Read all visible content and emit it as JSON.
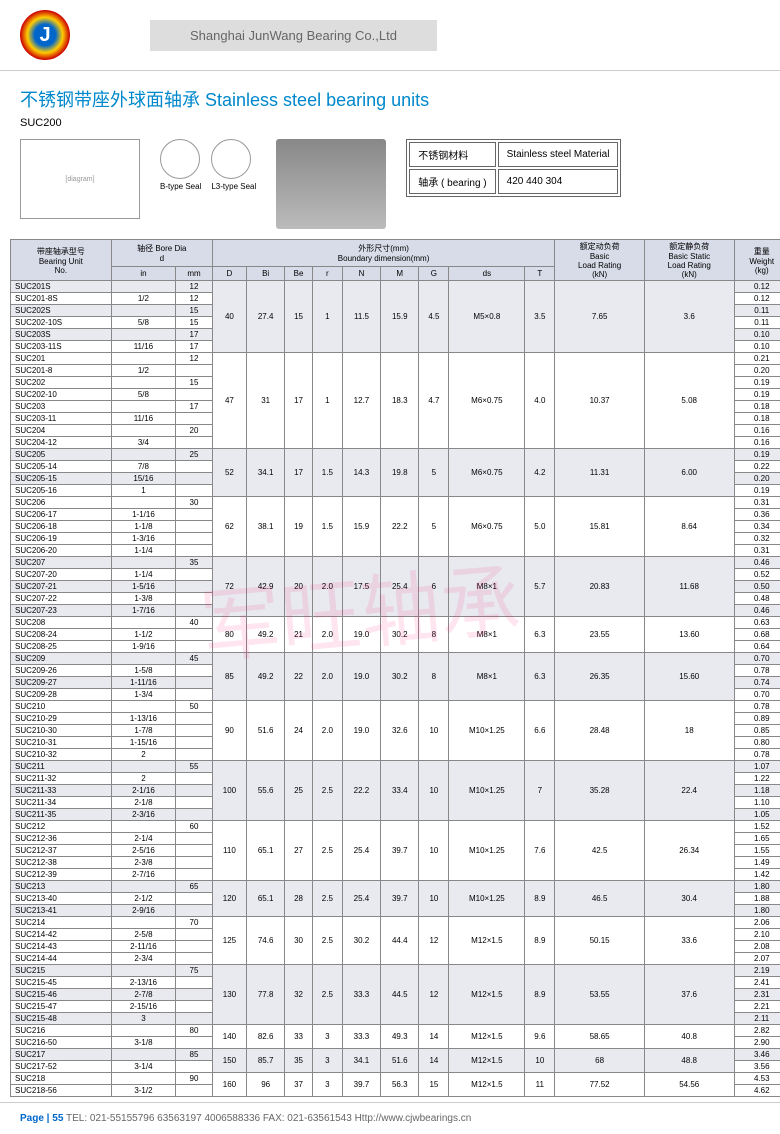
{
  "company": "Shanghai JunWang Bearing Co.,Ltd",
  "title_cn": "不锈钢带座外球面轴承",
  "title_en": "Stainless steel bearing units",
  "model": "SUC200",
  "seal1": "B-type Seal",
  "seal2": "L3-type Seal",
  "mat_label": "不锈钢材料",
  "mat_en": "Stainless steel Material",
  "bearing_label": "轴承 ( bearing )",
  "bearing_val": "420 440 304",
  "h_no": "带座轴承型号\nBearing Unit\nNo.",
  "h_bore": "轴径 Bore Dia\nd",
  "h_dim": "外形尺寸(mm)\nBoundary dimension(mm)",
  "h_basic": "额定动负荷\nBasic\nLoad Rating\n(kN)",
  "h_static": "额定静负荷\nBasic Static\nLoad Rating\n(kN)",
  "h_weight": "重量\nWeight\n(kg)",
  "cols": [
    "in",
    "mm",
    "D",
    "Bi",
    "Be",
    "r",
    "N",
    "M",
    "G",
    "ds",
    "T"
  ],
  "rows": [
    [
      "SUC201S",
      "",
      "12",
      "40",
      "27.4",
      "15",
      "1",
      "11.5",
      "15.9",
      "4.5",
      "M5×0.8",
      "3.5",
      "7.65",
      "3.6",
      "0.12",
      1
    ],
    [
      "SUC201-8S",
      "1/2",
      "12",
      "",
      "",
      "",
      "",
      "",
      "",
      "",
      "",
      "",
      "",
      "",
      "0.12",
      0
    ],
    [
      "SUC202S",
      "",
      "15",
      "",
      "",
      "",
      "",
      "",
      "",
      "",
      "",
      "",
      "",
      "",
      "0.11",
      1
    ],
    [
      "SUC202-10S",
      "5/8",
      "15",
      "",
      "",
      "",
      "",
      "",
      "",
      "",
      "",
      "",
      "",
      "",
      "0.11",
      0
    ],
    [
      "SUC203S",
      "",
      "17",
      "",
      "",
      "",
      "",
      "",
      "",
      "",
      "",
      "",
      "",
      "",
      "0.10",
      1
    ],
    [
      "SUC203-11S",
      "11/16",
      "17",
      "",
      "",
      "",
      "",
      "",
      "",
      "",
      "",
      "",
      "",
      "",
      "0.10",
      0
    ],
    [
      "SUC201",
      "",
      "12",
      "47",
      "31",
      "17",
      "1",
      "12.7",
      "18.3",
      "4.7",
      "M6×0.75",
      "4.0",
      "10.37",
      "5.08",
      "0.21",
      0
    ],
    [
      "SUC201-8",
      "1/2",
      "",
      "",
      "",
      "",
      "",
      "",
      "",
      "",
      "",
      "",
      "",
      "",
      "0.20",
      0
    ],
    [
      "SUC202",
      "",
      "15",
      "",
      "",
      "",
      "",
      "",
      "",
      "",
      "",
      "",
      "",
      "",
      "0.19",
      0
    ],
    [
      "SUC202-10",
      "5/8",
      "",
      "",
      "",
      "",
      "",
      "",
      "",
      "",
      "",
      "",
      "",
      "",
      "0.19",
      0
    ],
    [
      "SUC203",
      "",
      "17",
      "",
      "",
      "",
      "",
      "",
      "",
      "",
      "",
      "",
      "",
      "",
      "0.18",
      0
    ],
    [
      "SUC203-11",
      "11/16",
      "",
      "",
      "",
      "",
      "",
      "",
      "",
      "",
      "",
      "",
      "",
      "",
      "0.18",
      0
    ],
    [
      "SUC204",
      "",
      "20",
      "",
      "",
      "",
      "",
      "",
      "",
      "",
      "",
      "",
      "",
      "",
      "0.16",
      0
    ],
    [
      "SUC204-12",
      "3/4",
      "",
      "",
      "",
      "",
      "",
      "",
      "",
      "",
      "",
      "",
      "",
      "",
      "0.16",
      0
    ],
    [
      "SUC205",
      "",
      "25",
      "52",
      "34.1",
      "17",
      "1.5",
      "14.3",
      "19.8",
      "5",
      "M6×0.75",
      "4.2",
      "11.31",
      "6.00",
      "0.19",
      1
    ],
    [
      "SUC205-14",
      "7/8",
      "",
      "",
      "",
      "",
      "",
      "",
      "",
      "",
      "",
      "",
      "",
      "",
      "0.22",
      0
    ],
    [
      "SUC205-15",
      "15/16",
      "",
      "",
      "",
      "",
      "",
      "",
      "",
      "",
      "",
      "",
      "",
      "",
      "0.20",
      1
    ],
    [
      "SUC205-16",
      "1",
      "",
      "",
      "",
      "",
      "",
      "",
      "",
      "",
      "",
      "",
      "",
      "",
      "0.19",
      0
    ],
    [
      "SUC206",
      "",
      "30",
      "62",
      "38.1",
      "19",
      "1.5",
      "15.9",
      "22.2",
      "5",
      "M6×0.75",
      "5.0",
      "15.81",
      "8.64",
      "0.31",
      0
    ],
    [
      "SUC206-17",
      "1-1/16",
      "",
      "",
      "",
      "",
      "",
      "",
      "",
      "",
      "",
      "",
      "",
      "",
      "0.36",
      0
    ],
    [
      "SUC206-18",
      "1-1/8",
      "",
      "",
      "",
      "",
      "",
      "",
      "",
      "",
      "",
      "",
      "",
      "",
      "0.34",
      0
    ],
    [
      "SUC206-19",
      "1-3/16",
      "",
      "",
      "",
      "",
      "",
      "",
      "",
      "",
      "",
      "",
      "",
      "",
      "0.32",
      0
    ],
    [
      "SUC206-20",
      "1-1/4",
      "",
      "",
      "",
      "",
      "",
      "",
      "",
      "",
      "",
      "",
      "",
      "",
      "0.31",
      0
    ],
    [
      "SUC207",
      "",
      "35",
      "72",
      "42.9",
      "20",
      "2.0",
      "17.5",
      "25.4",
      "6",
      "M8×1",
      "5.7",
      "20.83",
      "11.68",
      "0.46",
      1
    ],
    [
      "SUC207-20",
      "1-1/4",
      "",
      "",
      "",
      "",
      "",
      "",
      "",
      "",
      "",
      "",
      "",
      "",
      "0.52",
      0
    ],
    [
      "SUC207-21",
      "1-5/16",
      "",
      "",
      "",
      "",
      "",
      "",
      "",
      "",
      "",
      "",
      "",
      "",
      "0.50",
      1
    ],
    [
      "SUC207-22",
      "1-3/8",
      "",
      "",
      "",
      "",
      "",
      "",
      "",
      "",
      "",
      "",
      "",
      "",
      "0.48",
      0
    ],
    [
      "SUC207-23",
      "1-7/16",
      "",
      "",
      "",
      "",
      "",
      "",
      "",
      "",
      "",
      "",
      "",
      "",
      "0.46",
      1
    ],
    [
      "SUC208",
      "",
      "40",
      "80",
      "49.2",
      "21",
      "2.0",
      "19.0",
      "30.2",
      "8",
      "M8×1",
      "6.3",
      "23.55",
      "13.60",
      "0.63",
      0
    ],
    [
      "SUC208-24",
      "1-1/2",
      "",
      "",
      "",
      "",
      "",
      "",
      "",
      "",
      "",
      "",
      "",
      "",
      "0.68",
      0
    ],
    [
      "SUC208-25",
      "1-9/16",
      "",
      "",
      "",
      "",
      "",
      "",
      "",
      "",
      "",
      "",
      "",
      "",
      "0.64",
      0
    ],
    [
      "SUC209",
      "",
      "45",
      "85",
      "49.2",
      "22",
      "2.0",
      "19.0",
      "30.2",
      "8",
      "M8×1",
      "6.3",
      "26.35",
      "15.60",
      "0.70",
      1
    ],
    [
      "SUC209-26",
      "1-5/8",
      "",
      "",
      "",
      "",
      "",
      "",
      "",
      "",
      "",
      "",
      "",
      "",
      "0.78",
      0
    ],
    [
      "SUC209-27",
      "1-11/16",
      "",
      "",
      "",
      "",
      "",
      "",
      "",
      "",
      "",
      "",
      "",
      "",
      "0.74",
      1
    ],
    [
      "SUC209-28",
      "1-3/4",
      "",
      "",
      "",
      "",
      "",
      "",
      "",
      "",
      "",
      "",
      "",
      "",
      "0.70",
      0
    ],
    [
      "SUC210",
      "",
      "50",
      "90",
      "51.6",
      "24",
      "2.0",
      "19.0",
      "32.6",
      "10",
      "M10×1.25",
      "6.6",
      "28.48",
      "18",
      "0.78",
      0
    ],
    [
      "SUC210-29",
      "1-13/16",
      "",
      "",
      "",
      "",
      "",
      "",
      "",
      "",
      "",
      "",
      "",
      "",
      "0.89",
      0
    ],
    [
      "SUC210-30",
      "1-7/8",
      "",
      "",
      "",
      "",
      "",
      "",
      "",
      "",
      "",
      "",
      "",
      "",
      "0.85",
      0
    ],
    [
      "SUC210-31",
      "1-15/16",
      "",
      "",
      "",
      "",
      "",
      "",
      "",
      "",
      "",
      "",
      "",
      "",
      "0.80",
      0
    ],
    [
      "SUC210-32",
      "2",
      "",
      "",
      "",
      "",
      "",
      "",
      "",
      "",
      "",
      "",
      "",
      "",
      "0.78",
      0
    ],
    [
      "SUC211",
      "",
      "55",
      "100",
      "55.6",
      "25",
      "2.5",
      "22.2",
      "33.4",
      "10",
      "M10×1.25",
      "7",
      "35.28",
      "22.4",
      "1.07",
      1
    ],
    [
      "SUC211-32",
      "2",
      "",
      "",
      "",
      "",
      "",
      "",
      "",
      "",
      "",
      "",
      "",
      "",
      "1.22",
      0
    ],
    [
      "SUC211-33",
      "2-1/16",
      "",
      "",
      "",
      "",
      "",
      "",
      "",
      "",
      "",
      "",
      "",
      "",
      "1.18",
      1
    ],
    [
      "SUC211-34",
      "2-1/8",
      "",
      "",
      "",
      "",
      "",
      "",
      "",
      "",
      "",
      "",
      "",
      "",
      "1.10",
      0
    ],
    [
      "SUC211-35",
      "2-3/16",
      "",
      "",
      "",
      "",
      "",
      "",
      "",
      "",
      "",
      "",
      "",
      "",
      "1.05",
      1
    ],
    [
      "SUC212",
      "",
      "60",
      "110",
      "65.1",
      "27",
      "2.5",
      "25.4",
      "39.7",
      "10",
      "M10×1.25",
      "7.6",
      "42.5",
      "26.34",
      "1.52",
      0
    ],
    [
      "SUC212-36",
      "2-1/4",
      "",
      "",
      "",
      "",
      "",
      "",
      "",
      "",
      "",
      "",
      "",
      "",
      "1.65",
      0
    ],
    [
      "SUC212-37",
      "2-5/16",
      "",
      "",
      "",
      "",
      "",
      "",
      "",
      "",
      "",
      "",
      "",
      "",
      "1.55",
      0
    ],
    [
      "SUC212-38",
      "2-3/8",
      "",
      "",
      "",
      "",
      "",
      "",
      "",
      "",
      "",
      "",
      "",
      "",
      "1.49",
      0
    ],
    [
      "SUC212-39",
      "2-7/16",
      "",
      "",
      "",
      "",
      "",
      "",
      "",
      "",
      "",
      "",
      "",
      "",
      "1.42",
      0
    ],
    [
      "SUC213",
      "",
      "65",
      "120",
      "65.1",
      "28",
      "2.5",
      "25.4",
      "39.7",
      "10",
      "M10×1.25",
      "8.9",
      "46.5",
      "30.4",
      "1.80",
      1
    ],
    [
      "SUC213-40",
      "2-1/2",
      "",
      "",
      "",
      "",
      "",
      "",
      "",
      "",
      "",
      "",
      "",
      "",
      "1.88",
      0
    ],
    [
      "SUC213-41",
      "2-9/16",
      "",
      "",
      "",
      "",
      "",
      "",
      "",
      "",
      "",
      "",
      "",
      "",
      "1.80",
      1
    ],
    [
      "SUC214",
      "",
      "70",
      "125",
      "74.6",
      "30",
      "2.5",
      "30.2",
      "44.4",
      "12",
      "M12×1.5",
      "8.9",
      "50.15",
      "33.6",
      "2.06",
      0
    ],
    [
      "SUC214-42",
      "2-5/8",
      "",
      "",
      "",
      "",
      "",
      "",
      "",
      "",
      "",
      "",
      "",
      "",
      "2.10",
      0
    ],
    [
      "SUC214-43",
      "2-11/16",
      "",
      "",
      "",
      "",
      "",
      "",
      "",
      "",
      "",
      "",
      "",
      "",
      "2.08",
      0
    ],
    [
      "SUC214-44",
      "2-3/4",
      "",
      "",
      "",
      "",
      "",
      "",
      "",
      "",
      "",
      "",
      "",
      "",
      "2.07",
      0
    ],
    [
      "SUC215",
      "",
      "75",
      "130",
      "77.8",
      "32",
      "2.5",
      "33.3",
      "44.5",
      "12",
      "M12×1.5",
      "8.9",
      "53.55",
      "37.6",
      "2.19",
      1
    ],
    [
      "SUC215-45",
      "2-13/16",
      "",
      "",
      "",
      "",
      "",
      "",
      "",
      "",
      "",
      "",
      "",
      "",
      "2.41",
      0
    ],
    [
      "SUC215-46",
      "2-7/8",
      "",
      "",
      "",
      "",
      "",
      "",
      "",
      "",
      "",
      "",
      "",
      "",
      "2.31",
      1
    ],
    [
      "SUC215-47",
      "2-15/16",
      "",
      "",
      "",
      "",
      "",
      "",
      "",
      "",
      "",
      "",
      "",
      "",
      "2.21",
      0
    ],
    [
      "SUC215-48",
      "3",
      "",
      "",
      "",
      "",
      "",
      "",
      "",
      "",
      "",
      "",
      "",
      "",
      "2.11",
      1
    ],
    [
      "SUC216",
      "",
      "80",
      "140",
      "82.6",
      "33",
      "3",
      "33.3",
      "49.3",
      "14",
      "M12×1.5",
      "9.6",
      "58.65",
      "40.8",
      "2.82",
      0
    ],
    [
      "SUC216-50",
      "3-1/8",
      "",
      "",
      "",
      "",
      "",
      "",
      "",
      "",
      "",
      "",
      "",
      "",
      "2.90",
      0
    ],
    [
      "SUC217",
      "",
      "85",
      "150",
      "85.7",
      "35",
      "3",
      "34.1",
      "51.6",
      "14",
      "M12×1.5",
      "10",
      "68",
      "48.8",
      "3.46",
      1
    ],
    [
      "SUC217-52",
      "3-1/4",
      "",
      "",
      "",
      "",
      "",
      "",
      "",
      "",
      "",
      "",
      "",
      "",
      "3.56",
      0
    ],
    [
      "SUC218",
      "",
      "90",
      "160",
      "96",
      "37",
      "3",
      "39.7",
      "56.3",
      "15",
      "M12×1.5",
      "11",
      "77.52",
      "54.56",
      "4.53",
      0
    ],
    [
      "SUC218-56",
      "3-1/2",
      "",
      "",
      "",
      "",
      "",
      "",
      "",
      "",
      "",
      "",
      "",
      "",
      "4.62",
      0
    ]
  ],
  "footer_page": "Page | 55",
  "footer_contact": "TEL: 021-55155796 63563197 4006588336 FAX: 021-63561543 Http://www.cjwbearings.cn"
}
